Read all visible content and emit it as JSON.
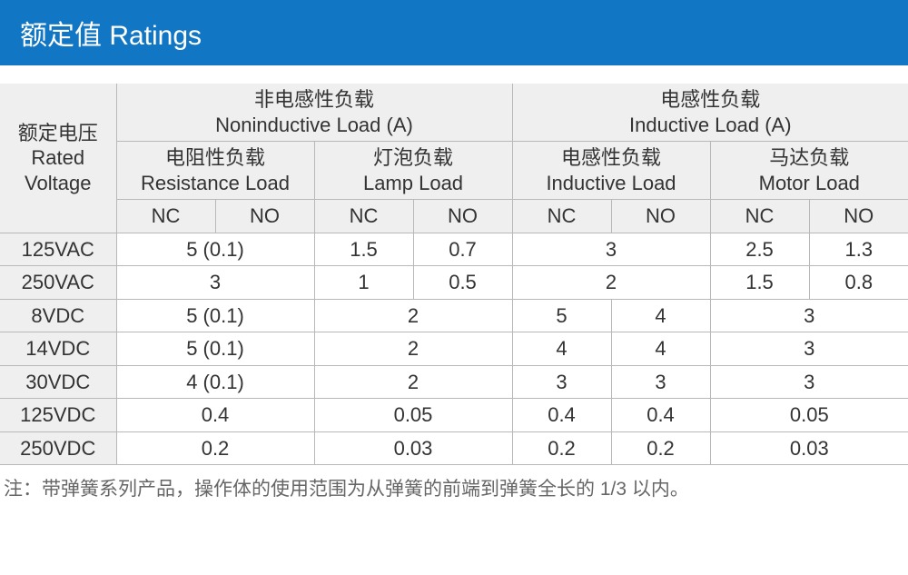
{
  "header": {
    "title": "额定值 Ratings"
  },
  "colors": {
    "header_bg": "#1176c3",
    "header_text": "#ffffff",
    "th_bg": "#efefef",
    "border": "#b8b8b8",
    "text": "#333333",
    "note_text": "#666666",
    "page_bg": "#ffffff"
  },
  "table": {
    "col_voltage": {
      "cn": "额定电压",
      "en1": "Rated",
      "en2": "Voltage"
    },
    "group_noninductive": {
      "cn": "非电感性负载",
      "en": "Noninductive Load (A)"
    },
    "group_inductive": {
      "cn": "电感性负载",
      "en": "Inductive Load (A)"
    },
    "sub_resistance": {
      "cn": "电阻性负载",
      "en": "Resistance Load"
    },
    "sub_lamp": {
      "cn": "灯泡负载",
      "en": "Lamp Load"
    },
    "sub_inductive": {
      "cn": "电感性负载",
      "en": "Inductive Load"
    },
    "sub_motor": {
      "cn": "马达负载",
      "en": "Motor Load"
    },
    "nc": "NC",
    "no": "NO",
    "rows": [
      {
        "v": "125VAC",
        "res": {
          "span": true,
          "val": "5 (0.1)"
        },
        "lamp": {
          "nc": "1.5",
          "no": "0.7"
        },
        "ind": {
          "span": true,
          "val": "3"
        },
        "mot": {
          "nc": "2.5",
          "no": "1.3"
        }
      },
      {
        "v": "250VAC",
        "res": {
          "span": true,
          "val": "3"
        },
        "lamp": {
          "nc": "1",
          "no": "0.5"
        },
        "ind": {
          "span": true,
          "val": "2"
        },
        "mot": {
          "nc": "1.5",
          "no": "0.8"
        }
      },
      {
        "v": "8VDC",
        "res": {
          "span": true,
          "val": "5 (0.1)"
        },
        "lamp": {
          "span": true,
          "val": "2"
        },
        "ind": {
          "nc": "5",
          "no": "4"
        },
        "mot": {
          "span": true,
          "val": "3"
        }
      },
      {
        "v": "14VDC",
        "res": {
          "span": true,
          "val": "5 (0.1)"
        },
        "lamp": {
          "span": true,
          "val": "2"
        },
        "ind": {
          "nc": "4",
          "no": "4"
        },
        "mot": {
          "span": true,
          "val": "3"
        }
      },
      {
        "v": "30VDC",
        "res": {
          "span": true,
          "val": "4 (0.1)"
        },
        "lamp": {
          "span": true,
          "val": "2"
        },
        "ind": {
          "nc": "3",
          "no": "3"
        },
        "mot": {
          "span": true,
          "val": "3"
        }
      },
      {
        "v": "125VDC",
        "res": {
          "span": true,
          "val": "0.4"
        },
        "lamp": {
          "span": true,
          "val": "0.05"
        },
        "ind": {
          "nc": "0.4",
          "no": "0.4"
        },
        "mot": {
          "span": true,
          "val": "0.05"
        }
      },
      {
        "v": "250VDC",
        "res": {
          "span": true,
          "val": "0.2"
        },
        "lamp": {
          "span": true,
          "val": "0.03"
        },
        "ind": {
          "nc": "0.2",
          "no": "0.2"
        },
        "mot": {
          "span": true,
          "val": "0.03"
        }
      }
    ]
  },
  "note": "注：带弹簧系列产品，操作体的使用范围为从弹簧的前端到弹簧全长的 1/3 以内。"
}
